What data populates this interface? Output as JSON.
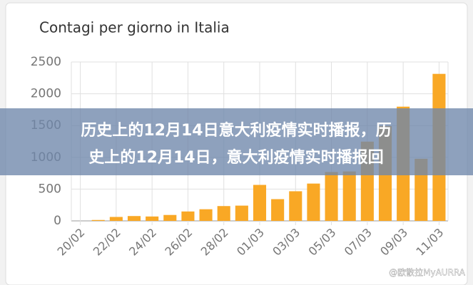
{
  "chart_data": {
    "type": "bar",
    "title": "Contagi per giorno in Italia",
    "categories": [
      "20/02",
      null,
      "22/02",
      null,
      "24/02",
      null,
      "26/02",
      null,
      "28/02",
      null,
      "01/03",
      null,
      "03/03",
      null,
      "05/03",
      null,
      "07/03",
      null,
      "09/03",
      null,
      "11/03"
    ],
    "values": [
      0,
      14,
      62,
      76,
      69,
      93,
      148,
      183,
      233,
      240,
      566,
      342,
      466,
      587,
      769,
      778,
      1247,
      1492,
      1797,
      977,
      2313
    ],
    "color": "#f9a825",
    "ylim": [
      0,
      2500
    ],
    "yticks": [
      0,
      500,
      1000,
      1500,
      2000,
      2500
    ],
    "grid": true
  },
  "banner": {
    "lines": [
      "历史上的12月14日意大利疫情实时播报，历",
      "史上的12月14日，意大利疫情实时播报回"
    ]
  },
  "watermark": "@欧散拉MyAURRA"
}
